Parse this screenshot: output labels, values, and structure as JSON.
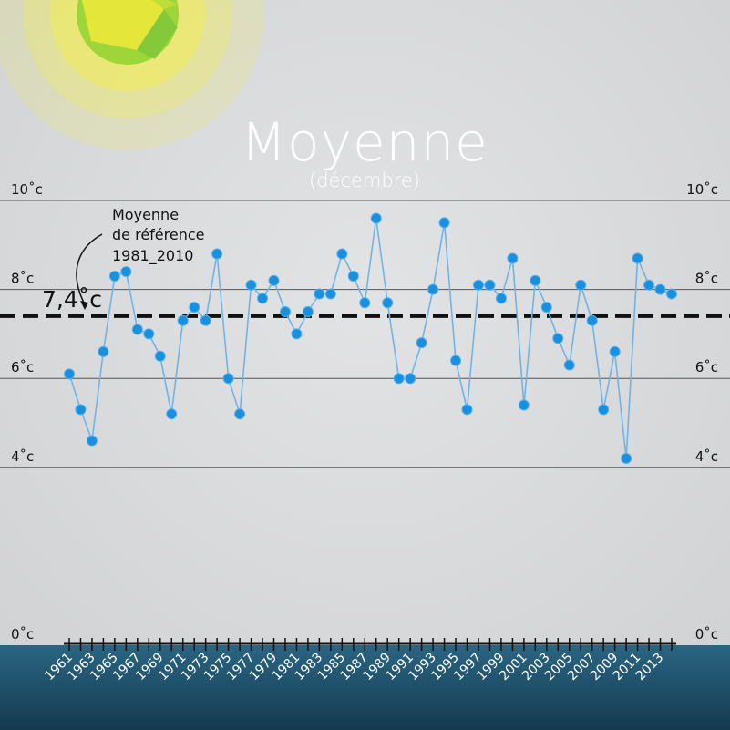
{
  "chart_data": {
    "type": "line",
    "title": "Moyenne",
    "subtitle": "(décembre)",
    "unit": "°c",
    "ylim": [
      0,
      10
    ],
    "yticks": [
      0,
      4,
      6,
      8,
      10
    ],
    "ytick_labels": [
      "0˚c",
      "4˚c",
      "6˚c",
      "8˚c",
      "10˚c"
    ],
    "x_tick_labels": [
      "1961",
      "1963",
      "1965",
      "1967",
      "1969",
      "1971",
      "1973",
      "1975",
      "1977",
      "1979",
      "1981",
      "1983",
      "1985",
      "1987",
      "1989",
      "1991",
      "1993",
      "1995",
      "1997",
      "1999",
      "2001",
      "2003",
      "2005",
      "2007",
      "2009",
      "2011",
      "2013"
    ],
    "reference": {
      "value": 7.4,
      "value_label": "7,4˚c",
      "label_lines": [
        "Moyenne",
        "de référence",
        "1981_2010"
      ]
    },
    "series": [
      {
        "color": "#1a8fe0",
        "line_color": "#6fb4e8",
        "x": [
          1961,
          1962,
          1963,
          1964,
          1965,
          1966,
          1967,
          1968,
          1969,
          1970,
          1971,
          1972,
          1973,
          1974,
          1975,
          1976,
          1977,
          1978,
          1979,
          1980,
          1981,
          1982,
          1983,
          1984,
          1985,
          1986,
          1987,
          1988,
          1989,
          1990,
          1991,
          1992,
          1993,
          1994,
          1995,
          1996,
          1997,
          1998,
          1999,
          2000,
          2001,
          2002,
          2003,
          2004,
          2005,
          2006,
          2007,
          2008,
          2009,
          2010,
          2011,
          2012,
          2013,
          2014
        ],
        "y": [
          6.1,
          5.3,
          4.6,
          6.6,
          8.3,
          8.4,
          7.1,
          7.0,
          6.5,
          5.2,
          7.3,
          7.6,
          7.3,
          8.8,
          6.0,
          5.2,
          8.1,
          7.8,
          8.2,
          7.5,
          7.0,
          7.5,
          7.9,
          7.9,
          8.8,
          8.3,
          7.7,
          9.6,
          7.7,
          6.0,
          6.0,
          6.8,
          8.0,
          9.5,
          6.4,
          5.3,
          8.1,
          8.1,
          7.8,
          8.7,
          5.4,
          8.2,
          7.6,
          6.9,
          6.3,
          8.1,
          7.3,
          5.3,
          6.6,
          4.2,
          8.7,
          8.1,
          8.0,
          7.9
        ]
      }
    ]
  },
  "colors": {
    "background": "#d9dadb",
    "footer": "#1f4f68",
    "title": "#ffffff",
    "gridline": "#555555",
    "reference_line": "#111111",
    "sun_core": "#9ed63a",
    "sun_glow": "#f4ef4a"
  },
  "decor": {
    "sun": "sun-icon"
  }
}
